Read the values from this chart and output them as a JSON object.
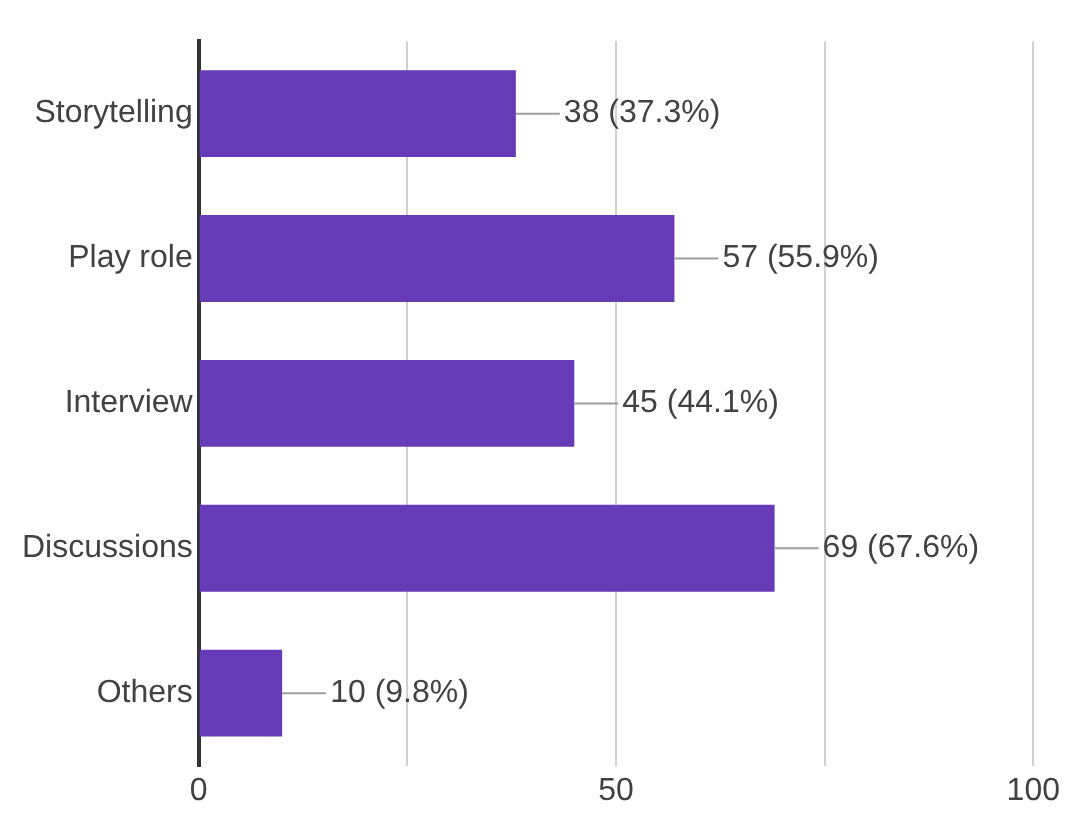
{
  "chart_data": {
    "type": "bar",
    "orientation": "horizontal",
    "categories": [
      "Storytelling",
      "Play role",
      "Interview",
      "Discussions",
      "Others"
    ],
    "values": [
      38,
      57,
      45,
      69,
      10
    ],
    "value_labels": [
      "38 (37.3%)",
      "57 (55.9%)",
      "45 (44.1%)",
      "69 (67.6%)",
      "10 (9.8%)"
    ],
    "color": "#673ab7",
    "xlim": [
      0,
      100
    ],
    "xticks": [
      0,
      {
        "value": 25,
        "label": null
      },
      50,
      {
        "value": 75,
        "label": null
      },
      100
    ],
    "grid": "x",
    "legend": false
  }
}
